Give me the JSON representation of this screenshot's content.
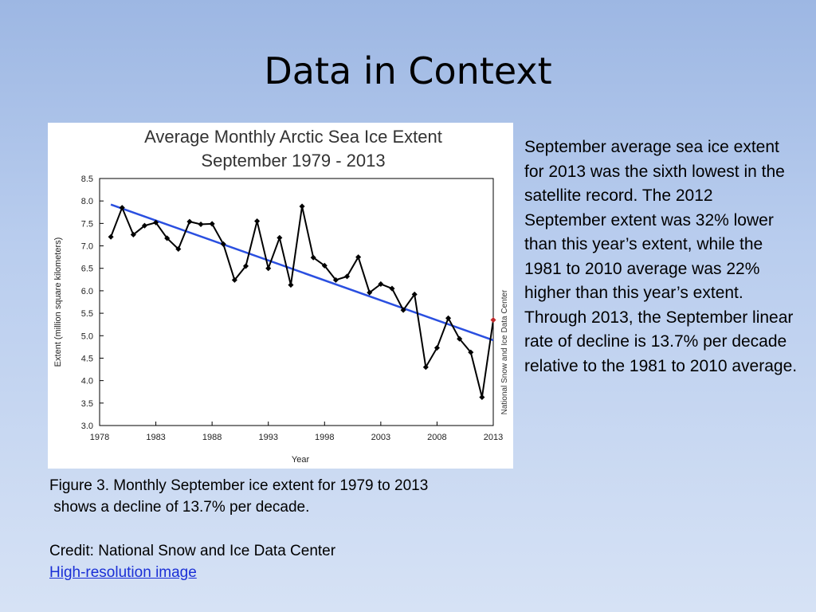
{
  "slide": {
    "title": "Data in Context",
    "body_text": "September average sea ice extent for 2013 was the sixth lowest in the satellite record. The 2012 September extent was 32% lower than this year’s extent, while the 1981 to 2010 average was 22% higher than this year’s extent. Through 2013, the September linear rate of decline is 13.7% per decade relative to the 1981 to 2010 average.",
    "caption_line1": "Figure 3. Monthly September ice extent for 1979 to 2013",
    "caption_line2": " shows a decline of 13.7% per decade.",
    "credit": "Credit: National Snow and Ice Data Center",
    "link_text": "High-resolution image"
  },
  "chart_data": {
    "type": "line",
    "title_line1": "Average Monthly Arctic Sea Ice Extent",
    "title_line2": "September 1979 - 2013",
    "xlabel": "Year",
    "ylabel": "Extent (million square kilometers)",
    "side_credit": "National Snow and Ice Data Center",
    "xlim": [
      1978,
      2013
    ],
    "ylim": [
      3.0,
      8.5
    ],
    "x_ticks": [
      1978,
      1983,
      1988,
      1993,
      1998,
      2003,
      2008,
      2013
    ],
    "y_ticks": [
      "3.0",
      "3.5",
      "4.0",
      "4.5",
      "5.0",
      "5.5",
      "6.0",
      "6.5",
      "7.0",
      "7.5",
      "8.0",
      "8.5"
    ],
    "grid": false,
    "series": [
      {
        "color": "#000000",
        "x": [
          1979,
          1980,
          1981,
          1982,
          1983,
          1984,
          1985,
          1986,
          1987,
          1988,
          1989,
          1990,
          1991,
          1992,
          1993,
          1994,
          1995,
          1996,
          1997,
          1998,
          1999,
          2000,
          2001,
          2002,
          2003,
          2004,
          2005,
          2006,
          2007,
          2008,
          2009,
          2010,
          2011,
          2012,
          2013
        ],
        "values": [
          7.2,
          7.85,
          7.25,
          7.45,
          7.52,
          7.17,
          6.93,
          7.54,
          7.48,
          7.49,
          7.04,
          6.24,
          6.55,
          7.55,
          6.5,
          7.18,
          6.13,
          7.88,
          6.74,
          6.56,
          6.24,
          6.32,
          6.75,
          5.96,
          6.15,
          6.05,
          5.57,
          5.92,
          4.3,
          4.73,
          5.39,
          4.93,
          4.63,
          3.63,
          5.35
        ]
      },
      {
        "color": "#2a4fe0",
        "x": [
          1979,
          2013
        ],
        "values": [
          7.92,
          4.9
        ]
      }
    ],
    "highlight": {
      "x": 2013,
      "value": 5.35,
      "color": "#c0282a"
    }
  }
}
